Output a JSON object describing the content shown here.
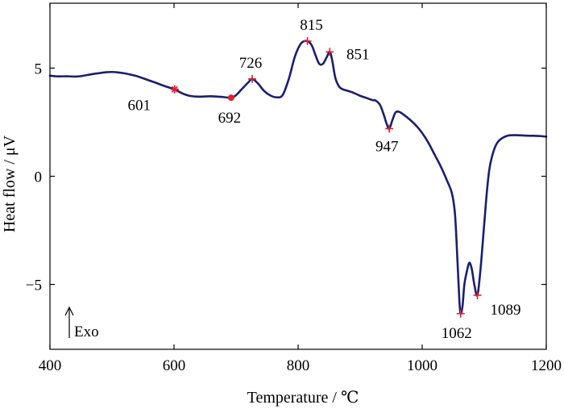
{
  "chart_data": {
    "type": "line",
    "xlabel": "Temperature / ℃",
    "ylabel": "Heat flow / μV",
    "xlim": [
      400,
      1200
    ],
    "ylim": [
      -8,
      8
    ],
    "xticks": [
      400,
      600,
      800,
      1000,
      1200
    ],
    "xtick_labels": [
      "400",
      "600",
      "800",
      "1000",
      "1200"
    ],
    "yticks": [
      5,
      0,
      -5
    ],
    "ytick_labels": [
      "5",
      "0",
      "−5"
    ],
    "grid": false,
    "annotation": "Exo",
    "series": [
      {
        "color": "#1a1f6e",
        "x": [
          400,
          410,
          420,
          430,
          440,
          450,
          460,
          470,
          480,
          490,
          500,
          510,
          520,
          530,
          540,
          550,
          560,
          570,
          580,
          590,
          601,
          612,
          625,
          640,
          660,
          680,
          692,
          700,
          710,
          720,
          726,
          735,
          745,
          755,
          765,
          775,
          785,
          795,
          805,
          815,
          822,
          828,
          834,
          840,
          846,
          851,
          855,
          860,
          866,
          872,
          880,
          890,
          900,
          910,
          920,
          925,
          932,
          938,
          943,
          947,
          952,
          957,
          963,
          970,
          980,
          990,
          1000,
          1010,
          1020,
          1030,
          1040,
          1048,
          1053,
          1057,
          1060,
          1062,
          1065,
          1068,
          1072,
          1076,
          1080,
          1084,
          1089,
          1094,
          1100,
          1105,
          1110,
          1120,
          1135,
          1150,
          1165,
          1180,
          1190,
          1200
        ],
        "y": [
          4.65,
          4.62,
          4.62,
          4.62,
          4.61,
          4.63,
          4.68,
          4.73,
          4.77,
          4.81,
          4.82,
          4.8,
          4.76,
          4.7,
          4.63,
          4.53,
          4.43,
          4.33,
          4.22,
          4.12,
          4.02,
          3.85,
          3.72,
          3.68,
          3.7,
          3.66,
          3.63,
          3.75,
          4.05,
          4.35,
          4.5,
          4.3,
          3.95,
          3.74,
          3.65,
          3.75,
          4.5,
          5.55,
          6.15,
          6.25,
          6.05,
          5.6,
          5.2,
          5.2,
          5.5,
          5.75,
          5.35,
          4.55,
          4.15,
          4.02,
          3.95,
          3.85,
          3.72,
          3.62,
          3.52,
          3.5,
          3.3,
          2.85,
          2.4,
          2.2,
          2.6,
          2.95,
          2.98,
          2.85,
          2.62,
          2.35,
          2.0,
          1.55,
          1.0,
          0.45,
          -0.2,
          -0.8,
          -1.8,
          -4.0,
          -5.8,
          -6.35,
          -6.0,
          -5.0,
          -4.4,
          -4.0,
          -4.3,
          -5.0,
          -5.5,
          -4.3,
          -2.2,
          -0.5,
          0.6,
          1.5,
          1.85,
          1.9,
          1.88,
          1.87,
          1.86,
          1.83
        ]
      }
    ],
    "markers": [
      {
        "x": 601,
        "y": 4.02,
        "label": "601",
        "symbol": "asterisk"
      },
      {
        "x": 692,
        "y": 3.63,
        "label": "692",
        "symbol": "dot"
      },
      {
        "x": 726,
        "y": 4.5,
        "label": "726",
        "symbol": "plus"
      },
      {
        "x": 815,
        "y": 6.25,
        "label": "815",
        "symbol": "plus"
      },
      {
        "x": 851,
        "y": 5.75,
        "label": "851",
        "symbol": "plus"
      },
      {
        "x": 947,
        "y": 2.2,
        "label": "947",
        "symbol": "plus"
      },
      {
        "x": 1062,
        "y": -6.35,
        "label": "1062",
        "symbol": "plus"
      },
      {
        "x": 1089,
        "y": -5.5,
        "label": "1089",
        "symbol": "plus"
      }
    ],
    "marker_color": "#e0202a"
  }
}
